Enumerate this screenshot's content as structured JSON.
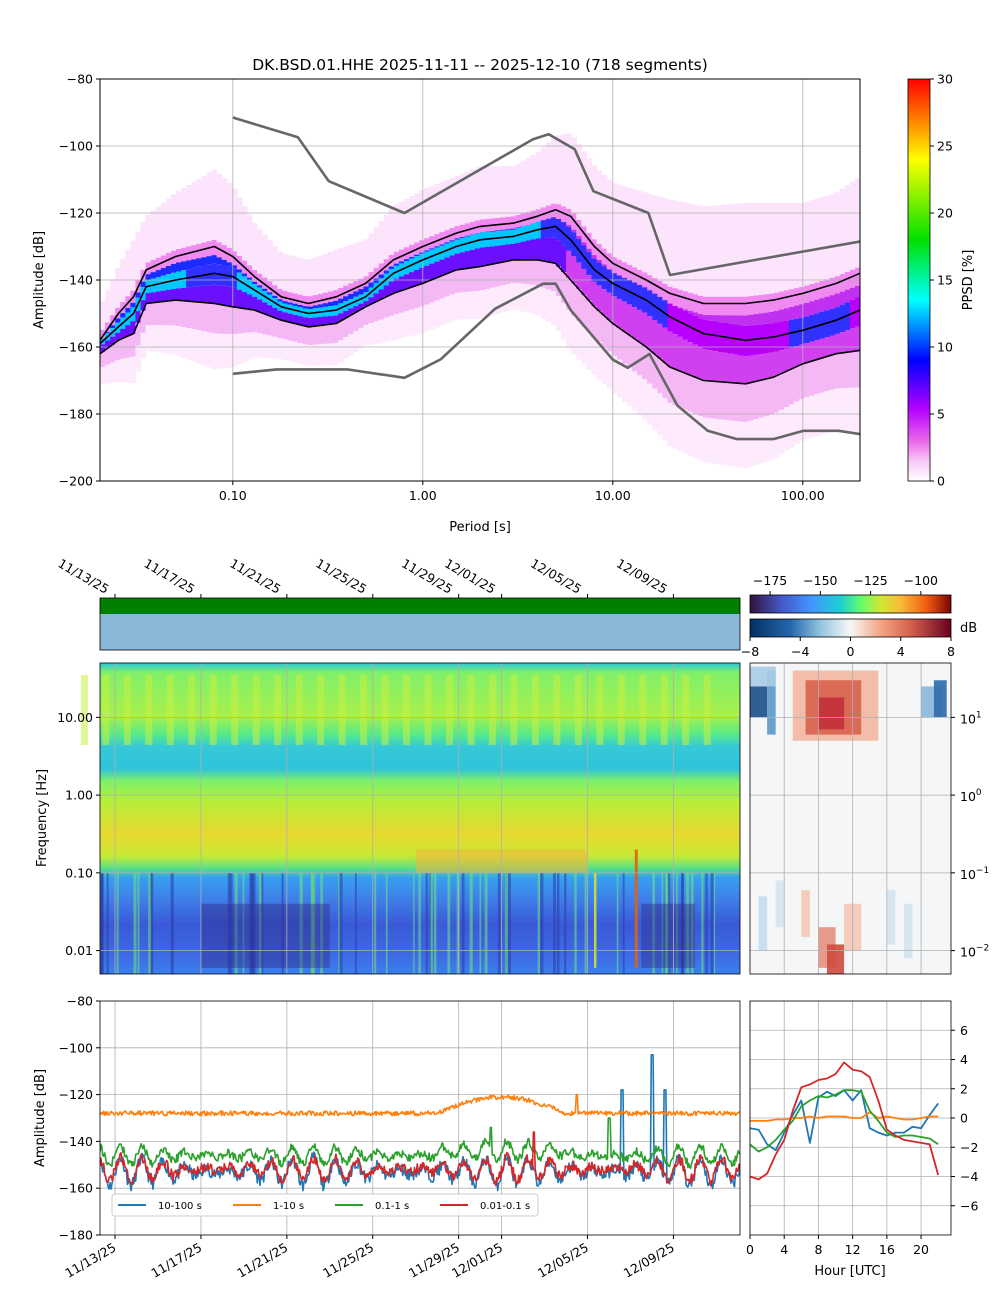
{
  "chart_data": [
    {
      "id": "ppsd",
      "type": "line",
      "title": "DK.BSD.01.HHE   2025-11-11 -- 2025-12-10  (718 segments)",
      "xlabel": "Period [s]",
      "ylabel": "Amplitude [dB]",
      "xscale": "log",
      "xlim": [
        0.02,
        200
      ],
      "ylim": [
        -200,
        -80
      ],
      "xticks": [
        0.1,
        1,
        10,
        100
      ],
      "xtick_labels": [
        "0.10",
        "1.00",
        "10.00",
        "100.00"
      ],
      "yticks": [
        -200,
        -180,
        -160,
        -140,
        -120,
        -100,
        -80
      ],
      "colorbar": {
        "label": "PPSD [%]",
        "range": [
          0,
          30
        ],
        "ticks": [
          0,
          5,
          10,
          15,
          20,
          25,
          30
        ]
      },
      "series": [
        {
          "name": "high noise model",
          "color": "#666666",
          "x": [
            0.1,
            0.22,
            0.32,
            0.8,
            3.8,
            4.6,
            6.3,
            7.9,
            15.4,
            20,
            200
          ],
          "y": [
            -91.5,
            -97.4,
            -110.5,
            -120,
            -98,
            -96.5,
            -101,
            -113.5,
            -120,
            -138.5,
            -128.5
          ]
        },
        {
          "name": "low noise model",
          "color": "#666666",
          "x": [
            0.1,
            0.17,
            0.4,
            0.8,
            1.24,
            2.4,
            4.3,
            5.0,
            6.0,
            10,
            12,
            15.6,
            21.9,
            31.6,
            45,
            70,
            101,
            154,
            200
          ],
          "y": [
            -168,
            -166.7,
            -166.7,
            -169.2,
            -163.7,
            -148.6,
            -141.1,
            -141.1,
            -149.0,
            -163.8,
            -166.2,
            -162.1,
            -177.5,
            -185,
            -187.5,
            -187.5,
            -185,
            -185,
            -186
          ]
        },
        {
          "name": "upper percentile",
          "color": "#000000",
          "x": [
            0.02,
            0.025,
            0.03,
            0.035,
            0.05,
            0.08,
            0.1,
            0.13,
            0.18,
            0.25,
            0.35,
            0.5,
            0.7,
            1,
            1.5,
            2,
            3,
            4,
            5,
            6,
            8,
            10,
            15,
            20,
            30,
            50,
            70,
            100,
            150,
            200
          ],
          "y": [
            -158,
            -150,
            -145,
            -137,
            -133,
            -130,
            -133,
            -139,
            -145,
            -147,
            -145,
            -141,
            -134,
            -130,
            -126,
            -124,
            -123,
            -121,
            -119,
            -121,
            -130,
            -135,
            -140,
            -144,
            -147,
            -147,
            -146,
            -144,
            -141,
            -138
          ]
        },
        {
          "name": "median",
          "color": "#000000",
          "x": [
            0.02,
            0.025,
            0.03,
            0.035,
            0.05,
            0.08,
            0.1,
            0.13,
            0.18,
            0.25,
            0.35,
            0.5,
            0.7,
            1,
            1.5,
            2,
            3,
            4,
            5,
            6,
            8,
            10,
            15,
            20,
            30,
            50,
            70,
            100,
            150,
            200
          ],
          "y": [
            -159,
            -154,
            -150,
            -142,
            -140,
            -138,
            -139,
            -143,
            -148,
            -150,
            -149,
            -145,
            -138,
            -134,
            -130,
            -128,
            -127,
            -125,
            -124,
            -128,
            -137,
            -141,
            -146,
            -151,
            -156,
            -158,
            -157,
            -155,
            -152,
            -149
          ]
        },
        {
          "name": "lower percentile",
          "color": "#000000",
          "x": [
            0.02,
            0.025,
            0.03,
            0.035,
            0.05,
            0.08,
            0.1,
            0.13,
            0.18,
            0.25,
            0.35,
            0.5,
            0.7,
            1,
            1.5,
            2,
            3,
            4,
            5,
            6,
            8,
            10,
            15,
            20,
            30,
            50,
            70,
            100,
            150,
            200
          ],
          "y": [
            -162,
            -158,
            -156,
            -147,
            -146,
            -147,
            -148,
            -149,
            -152,
            -154,
            -153,
            -148,
            -144,
            -141,
            -137,
            -136,
            -134,
            -134,
            -135,
            -140,
            -148,
            -153,
            -160,
            -166,
            -170,
            -171,
            -169,
            -165,
            -162,
            -161
          ]
        }
      ]
    },
    {
      "id": "spectrogram",
      "type": "heatmap",
      "ylabel": "Frequency [Hz]",
      "yscale": "log",
      "ylim": [
        0.005,
        50
      ],
      "yticks": [
        0.01,
        0.1,
        1,
        10
      ],
      "ytick_labels": [
        "0.01",
        "0.10",
        "1.00",
        "10.00"
      ],
      "date_ticks": [
        "11/13/25",
        "11/17/25",
        "11/21/25",
        "11/25/25",
        "11/29/25",
        "12/01/25",
        "12/05/25",
        "12/09/25"
      ],
      "colorbar": {
        "range": [
          -185,
          -85
        ],
        "ticks": [
          -175,
          -150,
          -125,
          -100
        ]
      }
    },
    {
      "id": "diurnal_heatmap",
      "type": "heatmap",
      "yscale": "log",
      "ytick_labels": [
        "10^-2",
        "10^-1",
        "10^0",
        "10^1"
      ],
      "colorbar": {
        "label": "dB",
        "range": [
          -8,
          8
        ],
        "ticks": [
          -8,
          -4,
          0,
          4,
          8
        ]
      }
    },
    {
      "id": "band_timeseries",
      "type": "line",
      "ylabel": "Amplitude [dB]",
      "ylim": [
        -180,
        -80
      ],
      "yticks": [
        -180,
        -160,
        -140,
        -120,
        -100,
        -80
      ],
      "date_ticks": [
        "11/13/25",
        "11/17/25",
        "11/21/25",
        "11/25/25",
        "11/29/25",
        "12/01/25",
        "12/05/25",
        "12/09/25"
      ],
      "series": [
        {
          "name": "10-100 s",
          "color": "#1f77b4",
          "base": -153,
          "swing": 6,
          "spikes": [
            [
              25.6,
              -118
            ],
            [
              27.0,
              -103
            ],
            [
              27.6,
              -118
            ]
          ]
        },
        {
          "name": "1-10 s",
          "color": "#ff7f0e",
          "base": -128,
          "swing": 1.5,
          "spikes": [
            [
              1.2,
              -123
            ],
            [
              23.5,
              -120
            ]
          ]
        },
        {
          "name": "0.1-1 s",
          "color": "#2ca02c",
          "base": -146,
          "swing": 4,
          "spikes": [
            [
              19.5,
              -134
            ],
            [
              25.0,
              -130
            ]
          ]
        },
        {
          "name": "0.01-0.1 s",
          "color": "#d62728",
          "base": -152,
          "swing": 5,
          "spikes": [
            [
              21.5,
              -136
            ]
          ]
        }
      ]
    },
    {
      "id": "diurnal_lines",
      "type": "line",
      "xlabel": "Hour [UTC]",
      "xlim": [
        0,
        23.5
      ],
      "xticks": [
        0,
        4,
        8,
        12,
        16,
        20
      ],
      "ylim": [
        -8,
        8
      ],
      "yticks": [
        -6,
        -4,
        -2,
        0,
        2,
        4,
        6
      ],
      "x": [
        0,
        1,
        2,
        3,
        4,
        5,
        6,
        7,
        8,
        9,
        10,
        11,
        12,
        13,
        14,
        15,
        16,
        17,
        18,
        19,
        20,
        21,
        22
      ],
      "series": [
        {
          "name": "10-100 s",
          "color": "#1f77b4",
          "values": [
            -0.7,
            -0.8,
            -1.8,
            -2.2,
            -1.0,
            0.2,
            1.2,
            -1.7,
            1.4,
            1.8,
            1.5,
            1.9,
            1.2,
            1.9,
            -0.7,
            -1.0,
            -1.2,
            -1.0,
            -1.0,
            -0.6,
            -0.7,
            0.2,
            1.0
          ]
        },
        {
          "name": "1-10 s",
          "color": "#ff7f0e",
          "values": [
            -0.2,
            -0.2,
            -0.2,
            -0.1,
            -0.1,
            0.0,
            0.0,
            0.1,
            0.0,
            0.1,
            0.1,
            0.1,
            0.0,
            0.0,
            0.4,
            0.0,
            0.1,
            0.0,
            -0.1,
            -0.1,
            0.0,
            0.1,
            0.1
          ]
        },
        {
          "name": "0.1-1 s",
          "color": "#2ca02c",
          "values": [
            -1.8,
            -2.3,
            -2.0,
            -1.5,
            -0.8,
            -0.2,
            0.8,
            1.2,
            1.5,
            1.4,
            1.6,
            1.9,
            1.9,
            1.8,
            0.5,
            -0.2,
            -1.0,
            -1.3,
            -1.2,
            -1.2,
            -1.3,
            -1.4,
            -1.8
          ]
        },
        {
          "name": "0.01-0.1 s",
          "color": "#d62728",
          "values": [
            -4.0,
            -4.2,
            -3.8,
            -2.5,
            -1.5,
            0.5,
            2.1,
            2.3,
            2.6,
            2.7,
            3.0,
            3.8,
            3.3,
            3.2,
            2.8,
            1.2,
            -0.8,
            -1.2,
            -1.5,
            -1.6,
            -1.7,
            -1.8,
            -3.9
          ]
        }
      ]
    }
  ]
}
